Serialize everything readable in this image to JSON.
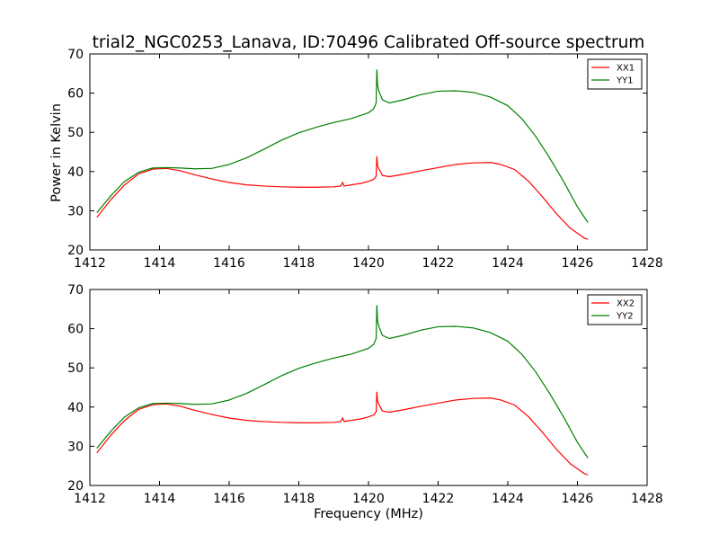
{
  "figure": {
    "title": "trial2_NGC0253_Lanava, ID:70496 Calibrated Off-source spectrum",
    "xlabel": "Frequency (MHz)",
    "ylabel": "Power in Kelvin"
  },
  "chart_data": [
    {
      "type": "line",
      "xlim": [
        1412,
        1428
      ],
      "ylim": [
        20,
        70
      ],
      "xticks": [
        1412,
        1414,
        1416,
        1418,
        1420,
        1422,
        1424,
        1426,
        1428
      ],
      "yticks": [
        20,
        30,
        40,
        50,
        60,
        70
      ],
      "ylabel": "Power in Kelvin",
      "legend": "top-right",
      "grid": false,
      "series": [
        {
          "name": "XX1",
          "color": "#ff0000",
          "x": [
            1412.2,
            1412.6,
            1413.0,
            1413.4,
            1413.8,
            1414.2,
            1414.6,
            1415.0,
            1415.5,
            1416.0,
            1416.5,
            1417.0,
            1417.5,
            1418.0,
            1418.5,
            1419.0,
            1419.2,
            1419.26,
            1419.3,
            1419.5,
            1419.8,
            1420.0,
            1420.15,
            1420.22,
            1420.24,
            1420.26,
            1420.3,
            1420.4,
            1420.6,
            1421.0,
            1421.5,
            1422.0,
            1422.5,
            1423.0,
            1423.5,
            1423.8,
            1424.2,
            1424.6,
            1425.0,
            1425.4,
            1425.8,
            1426.2,
            1426.3
          ],
          "y": [
            28.3,
            32.8,
            36.6,
            39.4,
            40.6,
            40.8,
            40.2,
            39.2,
            38.1,
            37.2,
            36.6,
            36.3,
            36.1,
            36.0,
            36.0,
            36.1,
            36.3,
            37.2,
            36.3,
            36.6,
            37.0,
            37.5,
            38.0,
            38.8,
            43.9,
            41.5,
            40.7,
            39.0,
            38.7,
            39.3,
            40.2,
            41.0,
            41.8,
            42.2,
            42.3,
            41.8,
            40.5,
            37.5,
            33.5,
            29.2,
            25.5,
            23.0,
            22.7
          ]
        },
        {
          "name": "YY1",
          "color": "#008000",
          "x": [
            1412.2,
            1412.6,
            1413.0,
            1413.4,
            1413.8,
            1414.2,
            1414.6,
            1415.0,
            1415.5,
            1416.0,
            1416.5,
            1417.0,
            1417.5,
            1418.0,
            1418.5,
            1419.0,
            1419.5,
            1420.0,
            1420.15,
            1420.22,
            1420.24,
            1420.26,
            1420.3,
            1420.4,
            1420.6,
            1421.0,
            1421.5,
            1422.0,
            1422.5,
            1423.0,
            1423.5,
            1424.0,
            1424.4,
            1424.8,
            1425.2,
            1425.6,
            1426.0,
            1426.3
          ],
          "y": [
            29.5,
            33.8,
            37.5,
            39.8,
            40.9,
            41.0,
            40.9,
            40.7,
            40.8,
            41.8,
            43.5,
            45.7,
            48.0,
            49.9,
            51.3,
            52.5,
            53.5,
            55.0,
            56.0,
            57.5,
            66.0,
            62.0,
            60.5,
            58.3,
            57.5,
            58.3,
            59.6,
            60.5,
            60.6,
            60.2,
            59.0,
            56.8,
            53.5,
            49.0,
            43.5,
            37.5,
            31.0,
            27.0
          ]
        }
      ]
    },
    {
      "type": "line",
      "xlim": [
        1412,
        1428
      ],
      "ylim": [
        20,
        70
      ],
      "xticks": [
        1412,
        1414,
        1416,
        1418,
        1420,
        1422,
        1424,
        1426,
        1428
      ],
      "yticks": [
        20,
        30,
        40,
        50,
        60,
        70
      ],
      "xlabel": "Frequency (MHz)",
      "legend": "top-right",
      "grid": false,
      "series": [
        {
          "name": "XX2",
          "color": "#ff0000",
          "x": [
            1412.2,
            1412.6,
            1413.0,
            1413.4,
            1413.8,
            1414.2,
            1414.6,
            1415.0,
            1415.5,
            1416.0,
            1416.5,
            1417.0,
            1417.5,
            1418.0,
            1418.5,
            1419.0,
            1419.2,
            1419.26,
            1419.3,
            1419.5,
            1419.8,
            1420.0,
            1420.15,
            1420.22,
            1420.24,
            1420.26,
            1420.3,
            1420.4,
            1420.6,
            1421.0,
            1421.5,
            1422.0,
            1422.5,
            1423.0,
            1423.5,
            1423.8,
            1424.2,
            1424.6,
            1425.0,
            1425.4,
            1425.8,
            1426.2,
            1426.3
          ],
          "y": [
            28.3,
            32.8,
            36.6,
            39.4,
            40.6,
            40.8,
            40.2,
            39.2,
            38.1,
            37.2,
            36.6,
            36.3,
            36.1,
            36.0,
            36.0,
            36.1,
            36.3,
            37.2,
            36.3,
            36.6,
            37.0,
            37.5,
            38.0,
            38.8,
            43.9,
            41.5,
            40.7,
            39.0,
            38.7,
            39.3,
            40.2,
            41.0,
            41.8,
            42.2,
            42.3,
            41.8,
            40.5,
            37.5,
            33.5,
            29.2,
            25.5,
            23.0,
            22.7
          ]
        },
        {
          "name": "YY2",
          "color": "#008000",
          "x": [
            1412.2,
            1412.6,
            1413.0,
            1413.4,
            1413.8,
            1414.2,
            1414.6,
            1415.0,
            1415.5,
            1416.0,
            1416.5,
            1417.0,
            1417.5,
            1418.0,
            1418.5,
            1419.0,
            1419.5,
            1420.0,
            1420.15,
            1420.22,
            1420.24,
            1420.26,
            1420.3,
            1420.4,
            1420.6,
            1421.0,
            1421.5,
            1422.0,
            1422.5,
            1423.0,
            1423.5,
            1424.0,
            1424.4,
            1424.8,
            1425.2,
            1425.6,
            1426.0,
            1426.3
          ],
          "y": [
            29.5,
            33.8,
            37.5,
            39.8,
            40.9,
            41.0,
            40.9,
            40.7,
            40.8,
            41.8,
            43.5,
            45.7,
            48.0,
            49.9,
            51.3,
            52.5,
            53.5,
            55.0,
            56.0,
            57.5,
            66.0,
            62.0,
            60.5,
            58.3,
            57.5,
            58.3,
            59.6,
            60.5,
            60.6,
            60.2,
            59.0,
            56.8,
            53.5,
            49.0,
            43.5,
            37.5,
            31.0,
            27.0
          ]
        }
      ]
    }
  ]
}
